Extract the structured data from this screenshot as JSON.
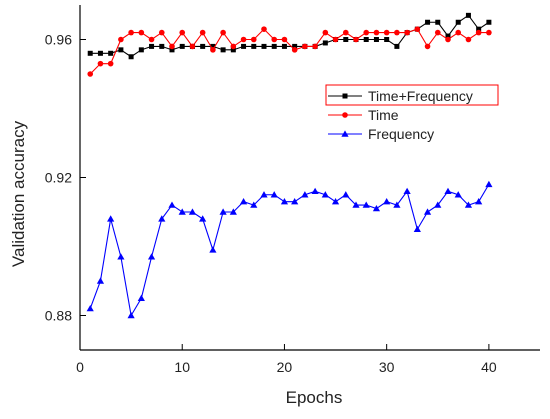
{
  "chart_data": {
    "type": "line",
    "xlabel": "Epochs",
    "ylabel": "Validation accuracy",
    "xlim": [
      0,
      45
    ],
    "ylim": [
      0.87,
      0.97
    ],
    "xticks": [
      0,
      10,
      20,
      30,
      40
    ],
    "yticks": [
      0.88,
      0.92,
      0.96
    ],
    "ytick_labels": [
      "0.88",
      "0.92",
      "0.96"
    ],
    "legend_position": "upper-right",
    "x": [
      1,
      2,
      3,
      4,
      5,
      6,
      7,
      8,
      9,
      10,
      11,
      12,
      13,
      14,
      15,
      16,
      17,
      18,
      19,
      20,
      21,
      22,
      23,
      24,
      25,
      26,
      27,
      28,
      29,
      30,
      31,
      32,
      33,
      34,
      35,
      36,
      37,
      38,
      39,
      40
    ],
    "series": [
      {
        "name": "Time+Frequency",
        "color": "#000000",
        "marker": "square",
        "values": [
          0.956,
          0.956,
          0.956,
          0.957,
          0.955,
          0.957,
          0.958,
          0.958,
          0.957,
          0.958,
          0.958,
          0.958,
          0.958,
          0.957,
          0.957,
          0.958,
          0.958,
          0.958,
          0.958,
          0.958,
          0.958,
          0.958,
          0.958,
          0.959,
          0.96,
          0.96,
          0.96,
          0.96,
          0.96,
          0.96,
          0.958,
          0.962,
          0.963,
          0.965,
          0.965,
          0.961,
          0.965,
          0.967,
          0.963,
          0.965
        ]
      },
      {
        "name": "Time",
        "color": "#ff0000",
        "marker": "circle",
        "values": [
          0.95,
          0.953,
          0.953,
          0.96,
          0.962,
          0.962,
          0.96,
          0.962,
          0.958,
          0.962,
          0.958,
          0.962,
          0.957,
          0.962,
          0.958,
          0.96,
          0.96,
          0.963,
          0.96,
          0.96,
          0.957,
          0.958,
          0.958,
          0.962,
          0.96,
          0.962,
          0.96,
          0.962,
          0.962,
          0.962,
          0.962,
          0.962,
          0.963,
          0.958,
          0.962,
          0.96,
          0.962,
          0.96,
          0.962,
          0.962
        ]
      },
      {
        "name": "Frequency",
        "color": "#0000ff",
        "marker": "triangle",
        "values": [
          0.882,
          0.89,
          0.908,
          0.897,
          0.88,
          0.885,
          0.897,
          0.908,
          0.912,
          0.91,
          0.91,
          0.908,
          0.899,
          0.91,
          0.91,
          0.913,
          0.912,
          0.915,
          0.915,
          0.913,
          0.913,
          0.915,
          0.916,
          0.915,
          0.913,
          0.915,
          0.912,
          0.912,
          0.911,
          0.913,
          0.912,
          0.916,
          0.905,
          0.91,
          0.912,
          0.916,
          0.915,
          0.912,
          0.913,
          0.918
        ]
      }
    ]
  }
}
